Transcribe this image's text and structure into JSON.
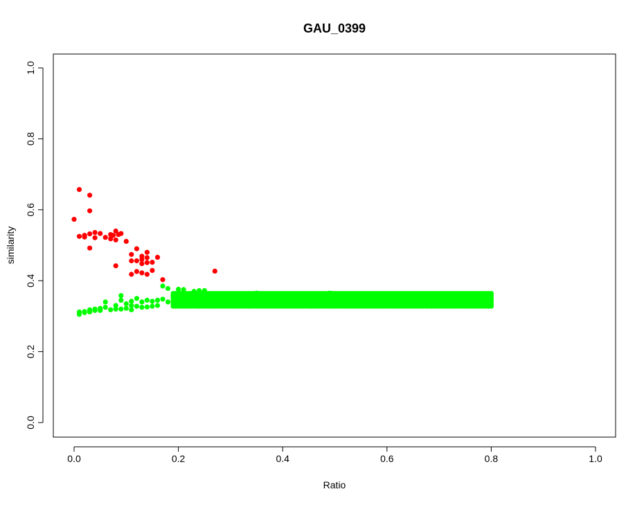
{
  "chart_data": {
    "type": "scatter",
    "title": "GAU_0399",
    "xlabel": "Ratio",
    "ylabel": "similarity",
    "xlim": [
      0,
      1
    ],
    "ylim": [
      0,
      1
    ],
    "x_ticks": [
      "0.0",
      "0.2",
      "0.4",
      "0.6",
      "0.8",
      "1.0"
    ],
    "y_ticks": [
      "0.0",
      "0.2",
      "0.4",
      "0.6",
      "0.8",
      "1.0"
    ],
    "grid": false,
    "legend": "none",
    "series": [
      {
        "color": "#ff0000",
        "points": [
          [
            0.0,
            0.573
          ],
          [
            0.01,
            0.657
          ],
          [
            0.01,
            0.525
          ],
          [
            0.02,
            0.523
          ],
          [
            0.02,
            0.528
          ],
          [
            0.03,
            0.641
          ],
          [
            0.03,
            0.597
          ],
          [
            0.03,
            0.532
          ],
          [
            0.03,
            0.492
          ],
          [
            0.04,
            0.536
          ],
          [
            0.04,
            0.521
          ],
          [
            0.05,
            0.533
          ],
          [
            0.06,
            0.522
          ],
          [
            0.07,
            0.53
          ],
          [
            0.07,
            0.518
          ],
          [
            0.075,
            0.528
          ],
          [
            0.08,
            0.54
          ],
          [
            0.08,
            0.515
          ],
          [
            0.08,
            0.442
          ],
          [
            0.085,
            0.53
          ],
          [
            0.09,
            0.533
          ],
          [
            0.1,
            0.511
          ],
          [
            0.11,
            0.474
          ],
          [
            0.11,
            0.456
          ],
          [
            0.11,
            0.418
          ],
          [
            0.12,
            0.49
          ],
          [
            0.12,
            0.456
          ],
          [
            0.12,
            0.426
          ],
          [
            0.13,
            0.469
          ],
          [
            0.13,
            0.46
          ],
          [
            0.13,
            0.448
          ],
          [
            0.13,
            0.422
          ],
          [
            0.14,
            0.48
          ],
          [
            0.14,
            0.465
          ],
          [
            0.14,
            0.451
          ],
          [
            0.14,
            0.418
          ],
          [
            0.15,
            0.452
          ],
          [
            0.15,
            0.429
          ],
          [
            0.16,
            0.466
          ],
          [
            0.17,
            0.403
          ],
          [
            0.27,
            0.427
          ]
        ]
      },
      {
        "color": "#00ff00",
        "points": [
          [
            0.01,
            0.305
          ],
          [
            0.01,
            0.312
          ],
          [
            0.02,
            0.31
          ],
          [
            0.02,
            0.313
          ],
          [
            0.03,
            0.312
          ],
          [
            0.03,
            0.318
          ],
          [
            0.04,
            0.316
          ],
          [
            0.04,
            0.32
          ],
          [
            0.05,
            0.316
          ],
          [
            0.05,
            0.322
          ],
          [
            0.06,
            0.325
          ],
          [
            0.06,
            0.34
          ],
          [
            0.07,
            0.318
          ],
          [
            0.08,
            0.32
          ],
          [
            0.08,
            0.33
          ],
          [
            0.09,
            0.32
          ],
          [
            0.09,
            0.345
          ],
          [
            0.09,
            0.358
          ],
          [
            0.1,
            0.322
          ],
          [
            0.1,
            0.335
          ],
          [
            0.11,
            0.318
          ],
          [
            0.11,
            0.33
          ],
          [
            0.11,
            0.342
          ],
          [
            0.12,
            0.328
          ],
          [
            0.12,
            0.35
          ],
          [
            0.13,
            0.325
          ],
          [
            0.13,
            0.34
          ],
          [
            0.14,
            0.326
          ],
          [
            0.14,
            0.345
          ],
          [
            0.15,
            0.328
          ],
          [
            0.15,
            0.342
          ],
          [
            0.16,
            0.33
          ],
          [
            0.16,
            0.345
          ],
          [
            0.17,
            0.385
          ],
          [
            0.17,
            0.348
          ],
          [
            0.18,
            0.378
          ],
          [
            0.18,
            0.34
          ],
          [
            0.19,
            0.34
          ],
          [
            0.19,
            0.355
          ],
          [
            0.2,
            0.376
          ],
          [
            0.2,
            0.348
          ],
          [
            0.21,
            0.375
          ],
          [
            0.21,
            0.34
          ],
          [
            0.22,
            0.342
          ],
          [
            0.22,
            0.36
          ],
          [
            0.23,
            0.37
          ],
          [
            0.23,
            0.348
          ],
          [
            0.24,
            0.372
          ],
          [
            0.24,
            0.338
          ],
          [
            0.25,
            0.372
          ],
          [
            0.25,
            0.35
          ],
          [
            0.26,
            0.345
          ],
          [
            0.27,
            0.338
          ],
          [
            0.28,
            0.348
          ],
          [
            0.29,
            0.34
          ],
          [
            0.3,
            0.35
          ],
          [
            0.31,
            0.34
          ],
          [
            0.32,
            0.352
          ],
          [
            0.33,
            0.342
          ],
          [
            0.34,
            0.355
          ],
          [
            0.35,
            0.345
          ],
          [
            0.35,
            0.365
          ],
          [
            0.36,
            0.338
          ],
          [
            0.37,
            0.362
          ],
          [
            0.38,
            0.345
          ],
          [
            0.39,
            0.36
          ],
          [
            0.4,
            0.335
          ],
          [
            0.41,
            0.35
          ],
          [
            0.42,
            0.345
          ],
          [
            0.43,
            0.36
          ],
          [
            0.44,
            0.34
          ],
          [
            0.45,
            0.362
          ],
          [
            0.46,
            0.345
          ],
          [
            0.47,
            0.36
          ],
          [
            0.48,
            0.34
          ],
          [
            0.49,
            0.365
          ],
          [
            0.5,
            0.345
          ],
          [
            0.51,
            0.355
          ],
          [
            0.52,
            0.34
          ],
          [
            0.53,
            0.358
          ],
          [
            0.54,
            0.335
          ],
          [
            0.55,
            0.36
          ],
          [
            0.56,
            0.345
          ],
          [
            0.57,
            0.362
          ],
          [
            0.58,
            0.34
          ],
          [
            0.59,
            0.36
          ],
          [
            0.6,
            0.338
          ],
          [
            0.61,
            0.355
          ],
          [
            0.62,
            0.34
          ],
          [
            0.63,
            0.358
          ],
          [
            0.64,
            0.335
          ],
          [
            0.65,
            0.355
          ],
          [
            0.66,
            0.34
          ],
          [
            0.67,
            0.352
          ],
          [
            0.68,
            0.335
          ],
          [
            0.69,
            0.355
          ],
          [
            0.7,
            0.338
          ],
          [
            0.71,
            0.35
          ],
          [
            0.72,
            0.335
          ],
          [
            0.73,
            0.352
          ],
          [
            0.74,
            0.335
          ],
          [
            0.75,
            0.348
          ],
          [
            0.76,
            0.332
          ],
          [
            0.77,
            0.345
          ],
          [
            0.78,
            0.335
          ],
          [
            0.79,
            0.345
          ],
          [
            0.8,
            0.33
          ],
          [
            0.8,
            0.345
          ]
        ],
        "bands": [
          {
            "x_from": 0.19,
            "x_to": 0.8,
            "y_min": 0.328,
            "y_max": 0.365
          }
        ]
      }
    ]
  }
}
